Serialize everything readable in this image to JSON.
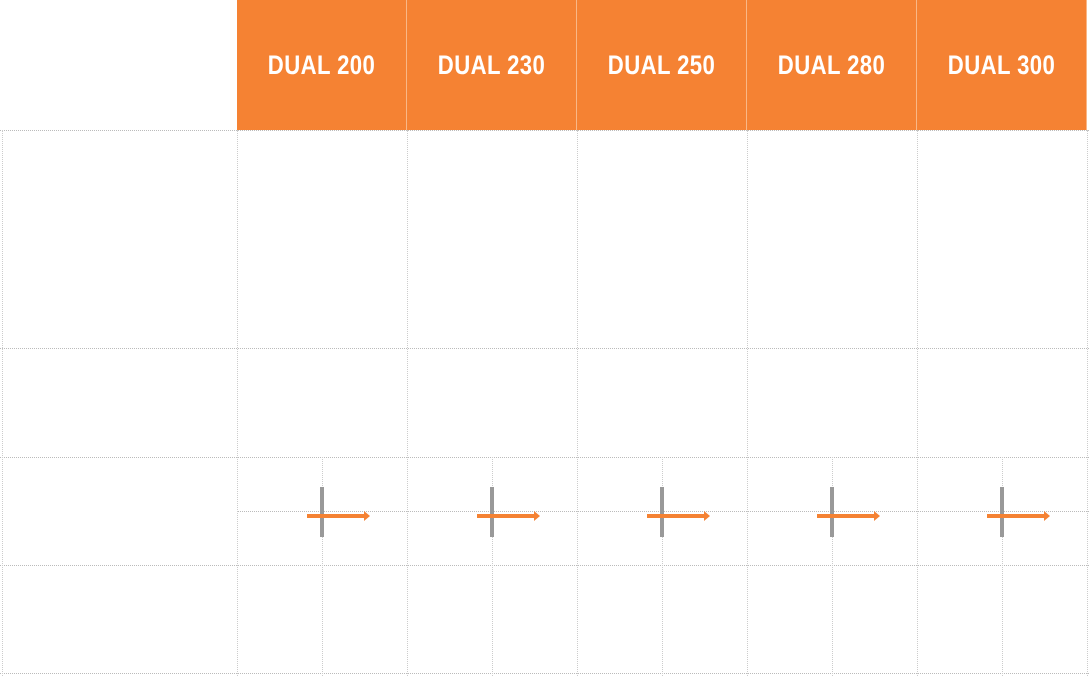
{
  "accent_color": "#F58233",
  "columns": [
    {
      "label": "DUAL 200"
    },
    {
      "label": "DUAL 230"
    },
    {
      "label": "DUAL 250"
    },
    {
      "label": "DUAL 280"
    },
    {
      "label": "DUAL 300"
    }
  ],
  "rows": [
    {
      "icon": null
    },
    {
      "icon": null
    },
    {
      "icon": null
    },
    {
      "icon": "cross-arrow-icon"
    },
    {
      "icon": null
    }
  ]
}
